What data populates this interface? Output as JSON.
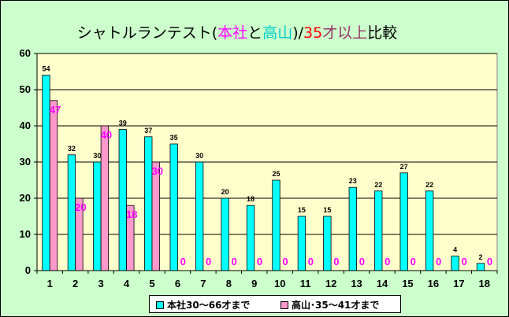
{
  "chart_data": {
    "type": "bar",
    "title_parts": [
      {
        "text": "シャトルランテスト(",
        "color": "#000000"
      },
      {
        "text": "本社",
        "color": "#ff00ff"
      },
      {
        "text": "と",
        "color": "#000000"
      },
      {
        "text": "高山",
        "color": "#00cccc"
      },
      {
        "text": ")/",
        "color": "#000000"
      },
      {
        "text": "35",
        "color": "#ff0000"
      },
      {
        "text": "才以上",
        "color": "#993366"
      },
      {
        "text": "比較",
        "color": "#000000"
      }
    ],
    "categories": [
      "1",
      "2",
      "3",
      "4",
      "5",
      "6",
      "7",
      "8",
      "9",
      "10",
      "11",
      "12",
      "13",
      "14",
      "15",
      "16",
      "17",
      "18"
    ],
    "ylim": [
      0,
      60
    ],
    "yticks": [
      "0",
      "10",
      "20",
      "30",
      "40",
      "50",
      "60"
    ],
    "grid": true,
    "legend_position": "bottom",
    "series": [
      {
        "name": "本社30～66才まで",
        "color": "#00ffff",
        "values": [
          54,
          32,
          30,
          39,
          37,
          35,
          30,
          20,
          18,
          25,
          15,
          15,
          23,
          22,
          27,
          22,
          4,
          2
        ],
        "labels": [
          "54",
          "32",
          "30",
          "39",
          "37",
          "35",
          "30",
          "20",
          "18",
          "25",
          "15",
          "15",
          "23",
          "22",
          "27",
          "22",
          "4",
          "2"
        ]
      },
      {
        "name": "高山･35～41才まで",
        "color": "#ff99cc",
        "values": [
          47,
          20,
          40,
          18,
          30,
          0,
          0,
          0,
          0,
          0,
          0,
          0,
          0,
          0,
          0,
          0,
          0,
          0
        ],
        "labels": [
          "47",
          "20",
          "40",
          "18",
          "30",
          "0",
          "0",
          "0",
          "0",
          "0",
          "0",
          "0",
          "0",
          "0",
          "0",
          "0",
          "0",
          "0"
        ]
      }
    ]
  }
}
